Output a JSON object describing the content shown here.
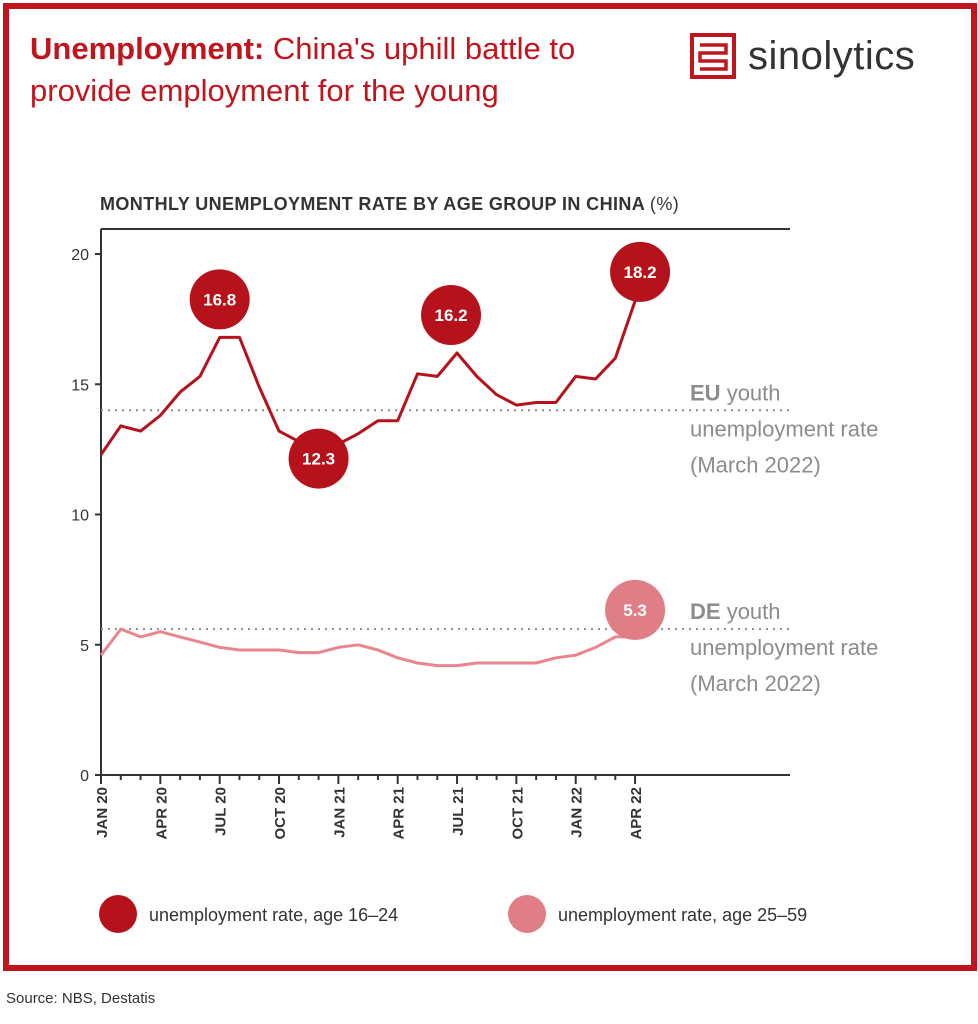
{
  "header": {
    "title_bold": "Unemployment:",
    "title_rest": " China's uphill battle to provide employment for the young"
  },
  "logo": {
    "text": "sinolytics",
    "icon": "sinolytics-logo-mark"
  },
  "source": "Source: NBS, Destatis",
  "colors": {
    "brand": "#c0151d",
    "youth_line": "#b5121b",
    "adult_line": "#e8868c",
    "adult_bubble": "#e07e86",
    "reference": "#8c8c8c",
    "axis": "#333333"
  },
  "chart_data": {
    "type": "line",
    "title": "MONTHLY UNEMPLOYMENT RATE BY AGE GROUP IN CHINA",
    "title_unit": "(%)",
    "x": [
      "2020-01",
      "2020-02",
      "2020-03",
      "2020-04",
      "2020-05",
      "2020-06",
      "2020-07",
      "2020-08",
      "2020-09",
      "2020-10",
      "2020-11",
      "2020-12",
      "2021-01",
      "2021-02",
      "2021-03",
      "2021-04",
      "2021-05",
      "2021-06",
      "2021-07",
      "2021-08",
      "2021-09",
      "2021-10",
      "2021-11",
      "2021-12",
      "2022-01",
      "2022-02",
      "2022-03",
      "2022-04"
    ],
    "x_tick_labels": [
      "JAN 20",
      "APR 20",
      "JUL 20",
      "OCT 20",
      "JAN 21",
      "APR 21",
      "JUL 21",
      "OCT 21",
      "JAN 22",
      "APR 22"
    ],
    "x_tick_dates": [
      "2020-01",
      "2020-04",
      "2020-07",
      "2020-10",
      "2021-01",
      "2021-04",
      "2021-07",
      "2021-10",
      "2022-01",
      "2022-04"
    ],
    "ylim": [
      0,
      20
    ],
    "y_ticks": [
      0,
      5,
      10,
      15,
      20
    ],
    "grid": false,
    "series": [
      {
        "name": "unemployment rate, age 16-24",
        "values": [
          12.3,
          13.4,
          13.2,
          13.8,
          14.7,
          15.3,
          16.8,
          16.8,
          14.9,
          13.2,
          12.8,
          12.3,
          12.7,
          13.1,
          13.6,
          13.6,
          15.4,
          15.3,
          16.2,
          15.3,
          14.6,
          14.2,
          14.3,
          14.3,
          15.3,
          15.2,
          16.0,
          18.2
        ],
        "annotations": [
          {
            "x": "2020-07",
            "label": "16.8"
          },
          {
            "x": "2020-12",
            "label": "12.3"
          },
          {
            "x": "2021-07",
            "label": "16.2"
          },
          {
            "x": "2022-04",
            "label": "18.2"
          }
        ]
      },
      {
        "name": "unemployment rate, age 25-59",
        "values": [
          4.6,
          5.6,
          5.3,
          5.5,
          5.3,
          5.1,
          4.9,
          4.8,
          4.8,
          4.8,
          4.7,
          4.7,
          4.9,
          5.0,
          4.8,
          4.5,
          4.3,
          4.2,
          4.2,
          4.3,
          4.3,
          4.3,
          4.3,
          4.5,
          4.6,
          4.9,
          5.3,
          5.3
        ],
        "annotations": [
          {
            "x": "2022-04",
            "label": "5.3"
          }
        ]
      }
    ],
    "reference_lines": [
      {
        "value": 14.0,
        "label_bold": "EU",
        "label_rest": "youth",
        "line2": "unemployment rate",
        "line3": "(March 2022)"
      },
      {
        "value": 5.6,
        "label_bold": "DE",
        "label_rest": "youth",
        "line2": "unemployment rate",
        "line3": "(March 2022)"
      }
    ],
    "legend": [
      {
        "label": "unemployment rate, age 16–24",
        "color": "#b5121b"
      },
      {
        "label": "unemployment rate, age 25–59",
        "color": "#e07e86"
      }
    ],
    "legend_position": "bottom"
  }
}
